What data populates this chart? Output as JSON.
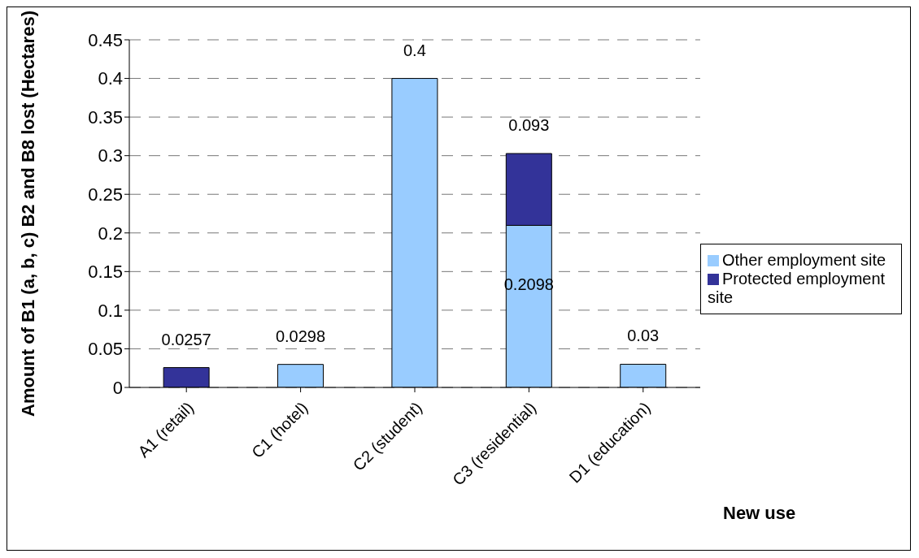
{
  "chart_data": {
    "type": "bar",
    "stacked": true,
    "ylabel": "Amount of B1 (a, b, c) B2 and B8 lost (Hectares)",
    "xlabel": "New use",
    "categories": [
      "A1 (retail)",
      "C1 (hotel)",
      "C2 (student)",
      "C3 (residential)",
      "D1 (education)"
    ],
    "series": [
      {
        "name": "Other employment site",
        "color": "#99ccff",
        "values": [
          null,
          0.0298,
          0.4,
          0.2098,
          0.03
        ]
      },
      {
        "name": "Protected employment site",
        "color": "#333399",
        "values": [
          0.0257,
          null,
          null,
          0.093,
          null
        ]
      }
    ],
    "ylim": [
      0,
      0.45
    ],
    "yticks": [
      0,
      0.05,
      0.1,
      0.15,
      0.2,
      0.25,
      0.3,
      0.35,
      0.4,
      0.45
    ],
    "grid": "y",
    "legend": "right",
    "data_labels": true
  }
}
